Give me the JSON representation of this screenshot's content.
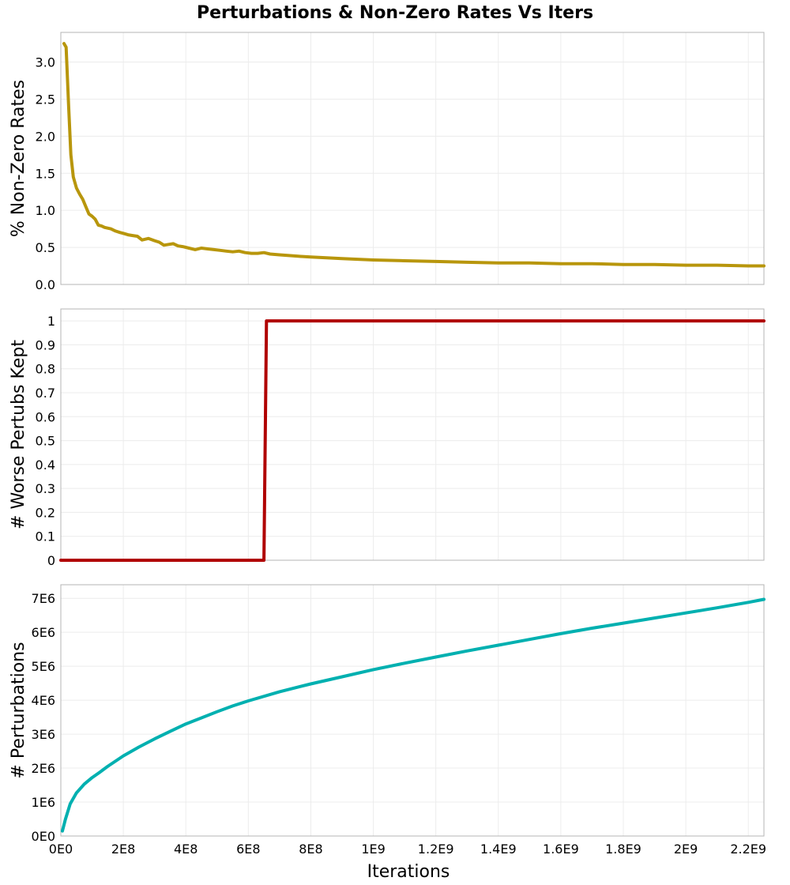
{
  "title": "Perturbations & Non-Zero Rates Vs Iters",
  "chart_data": [
    {
      "type": "line",
      "ylabel": "% Non-Zero Rates",
      "xlim": [
        0,
        2250000000
      ],
      "ylim": [
        0,
        3.4
      ],
      "x_ticks": [
        0,
        200000000,
        400000000,
        600000000,
        800000000,
        1000000000,
        1200000000,
        1400000000,
        1600000000,
        1800000000,
        2000000000,
        2200000000
      ],
      "y_ticks": [
        0,
        0.5,
        1,
        1.5,
        2,
        2.5,
        3
      ],
      "y_tick_labels": [
        "0.0",
        "0.5",
        "1.0",
        "1.5",
        "2.0",
        "2.5",
        "3.0"
      ],
      "grid": true,
      "series": [
        {
          "color": "#b8960c",
          "x": [
            10000000,
            17000000,
            25000000,
            32000000,
            40000000,
            50000000,
            60000000,
            70000000,
            80000000,
            90000000,
            100000000,
            110000000,
            120000000,
            130000000,
            140000000,
            150000000,
            160000000,
            175000000,
            190000000,
            200000000,
            215000000,
            230000000,
            245000000,
            260000000,
            280000000,
            300000000,
            315000000,
            330000000,
            345000000,
            360000000,
            375000000,
            390000000,
            410000000,
            430000000,
            450000000,
            470000000,
            490000000,
            510000000,
            530000000,
            550000000,
            570000000,
            590000000,
            610000000,
            630000000,
            650000000,
            670000000,
            700000000,
            730000000,
            760000000,
            800000000,
            850000000,
            900000000,
            950000000,
            1000000000,
            1100000000,
            1200000000,
            1300000000,
            1400000000,
            1500000000,
            1600000000,
            1700000000,
            1800000000,
            1900000000,
            2000000000,
            2100000000,
            2200000000,
            2250000000
          ],
          "y": [
            3.25,
            3.2,
            2.4,
            1.75,
            1.45,
            1.3,
            1.22,
            1.15,
            1.05,
            0.95,
            0.92,
            0.88,
            0.8,
            0.79,
            0.77,
            0.76,
            0.75,
            0.72,
            0.7,
            0.69,
            0.67,
            0.66,
            0.65,
            0.6,
            0.62,
            0.59,
            0.57,
            0.53,
            0.54,
            0.55,
            0.52,
            0.51,
            0.49,
            0.47,
            0.49,
            0.48,
            0.47,
            0.46,
            0.45,
            0.44,
            0.45,
            0.43,
            0.42,
            0.42,
            0.43,
            0.41,
            0.4,
            0.39,
            0.38,
            0.37,
            0.36,
            0.35,
            0.34,
            0.33,
            0.32,
            0.31,
            0.3,
            0.29,
            0.29,
            0.28,
            0.28,
            0.27,
            0.27,
            0.26,
            0.26,
            0.25,
            0.25
          ]
        }
      ]
    },
    {
      "type": "line",
      "ylabel": "# Worse Pertubs Kept",
      "xlim": [
        0,
        2250000000
      ],
      "ylim": [
        0,
        1.05
      ],
      "x_ticks": [
        0,
        200000000,
        400000000,
        600000000,
        800000000,
        1000000000,
        1200000000,
        1400000000,
        1600000000,
        1800000000,
        2000000000,
        2200000000
      ],
      "y_ticks": [
        0,
        0.1,
        0.2,
        0.3,
        0.4,
        0.5,
        0.6,
        0.7,
        0.8,
        0.9,
        1
      ],
      "y_tick_labels": [
        "0",
        "0.1",
        "0.2",
        "0.3",
        "0.4",
        "0.5",
        "0.6",
        "0.7",
        "0.8",
        "0.9",
        "1"
      ],
      "grid": true,
      "series": [
        {
          "color": "#b00000",
          "x": [
            0,
            650000000,
            658000000,
            2250000000
          ],
          "y": [
            0,
            0,
            1,
            1
          ]
        }
      ]
    },
    {
      "type": "line",
      "ylabel": "# Perturbations",
      "xlabel": "Iterations",
      "xlim": [
        0,
        2250000000
      ],
      "ylim": [
        0,
        7400000
      ],
      "x_ticks": [
        0,
        200000000,
        400000000,
        600000000,
        800000000,
        1000000000,
        1200000000,
        1400000000,
        1600000000,
        1800000000,
        2000000000,
        2200000000
      ],
      "x_tick_labels": [
        "0E0",
        "2E8",
        "4E8",
        "6E8",
        "8E8",
        "1E9",
        "1.2E9",
        "1.4E9",
        "1.6E9",
        "1.8E9",
        "2E9",
        "2.2E9"
      ],
      "y_ticks": [
        0,
        1000000,
        2000000,
        3000000,
        4000000,
        5000000,
        6000000,
        7000000
      ],
      "y_tick_labels": [
        "0E0",
        "1E6",
        "2E6",
        "3E6",
        "4E6",
        "5E6",
        "6E6",
        "7E6"
      ],
      "grid": true,
      "series": [
        {
          "color": "#00b0b0",
          "x": [
            5000000,
            15000000,
            30000000,
            50000000,
            75000000,
            100000000,
            125000000,
            150000000,
            200000000,
            250000000,
            300000000,
            350000000,
            400000000,
            450000000,
            500000000,
            550000000,
            600000000,
            700000000,
            800000000,
            900000000,
            1000000000,
            1100000000,
            1200000000,
            1300000000,
            1400000000,
            1500000000,
            1600000000,
            1700000000,
            1800000000,
            1900000000,
            2000000000,
            2100000000,
            2200000000,
            2250000000
          ],
          "y": [
            150000,
            500000,
            950000,
            1270000,
            1530000,
            1720000,
            1880000,
            2050000,
            2360000,
            2620000,
            2860000,
            3080000,
            3300000,
            3480000,
            3660000,
            3830000,
            3980000,
            4250000,
            4480000,
            4690000,
            4900000,
            5090000,
            5270000,
            5450000,
            5620000,
            5790000,
            5960000,
            6120000,
            6270000,
            6420000,
            6570000,
            6720000,
            6880000,
            6970000
          ]
        }
      ]
    }
  ]
}
